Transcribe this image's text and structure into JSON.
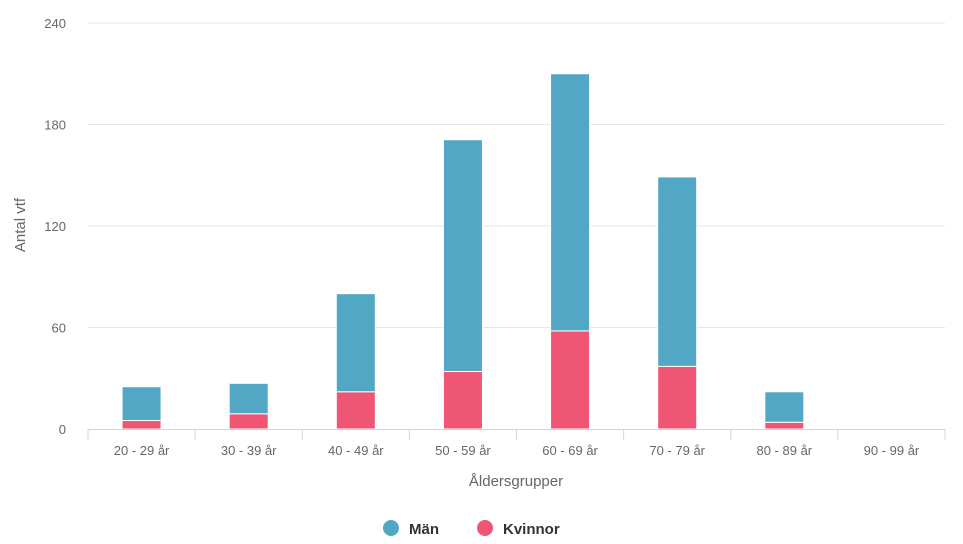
{
  "chart_data": {
    "type": "bar",
    "stacked": true,
    "categories": [
      "20 - 29 år",
      "30 - 39 år",
      "40 - 49 år",
      "50 - 59 år",
      "60 - 69 år",
      "70 - 79 år",
      "80 - 89 år",
      "90 - 99 år"
    ],
    "series": [
      {
        "name": "Kvinnor",
        "color": "#ee5673",
        "values": [
          5,
          9,
          22,
          34,
          58,
          37,
          4,
          0
        ]
      },
      {
        "name": "Män",
        "color": "#52a8c4",
        "values": [
          20,
          18,
          58,
          137,
          152,
          112,
          18,
          0
        ]
      }
    ],
    "xlabel": "Åldersgrupper",
    "ylabel": "Antal vtf",
    "ylim": [
      0,
      240
    ],
    "yticks": [
      0,
      60,
      120,
      180,
      240
    ],
    "grid": true,
    "legend": {
      "placement": "bottom-center",
      "order": [
        "Män",
        "Kvinnor"
      ]
    }
  }
}
